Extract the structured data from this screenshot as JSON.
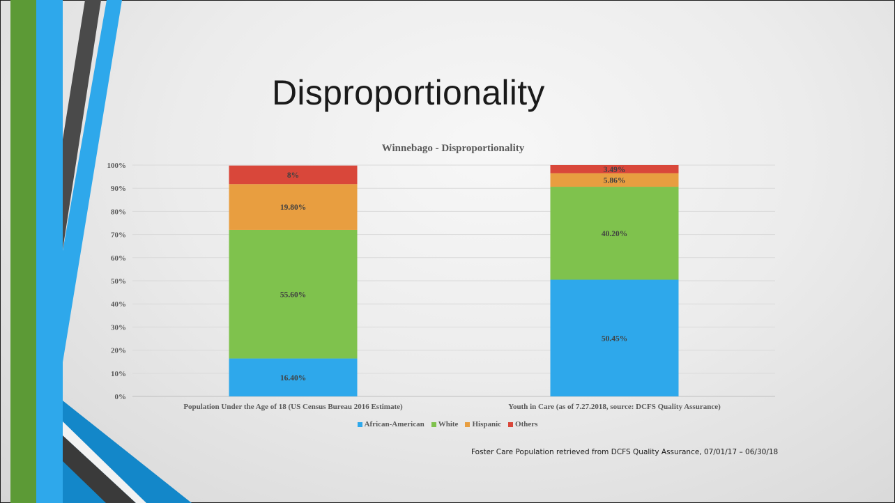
{
  "slide": {
    "title": "Disproportionality",
    "footnote": "Foster Care Population retrieved from DCFS Quality Assurance, 07/01/17 – 06/30/18"
  },
  "chart_data": {
    "type": "bar",
    "stacked": true,
    "title": "Winnebago - Disproportionality",
    "categories": [
      "Population Under the Age of 18 (US Census Bureau 2016 Estimate)",
      "Youth in Care (as of 7.27.2018, source: DCFS Quality Assurance)"
    ],
    "series": [
      {
        "name": "African-American",
        "color": "#2EA8EB",
        "values": [
          16.4,
          50.45
        ],
        "labels": [
          "16.40%",
          "50.45%"
        ]
      },
      {
        "name": "White",
        "color": "#7FC24D",
        "values": [
          55.6,
          40.2
        ],
        "labels": [
          "55.60%",
          "40.20%"
        ]
      },
      {
        "name": "Hispanic",
        "color": "#E89E40",
        "values": [
          19.8,
          5.86
        ],
        "labels": [
          "19.80%",
          "5.86%"
        ]
      },
      {
        "name": "Others",
        "color": "#D9473A",
        "values": [
          8,
          3.49
        ],
        "labels": [
          "8%",
          "3.49%"
        ]
      }
    ],
    "ylim": [
      0,
      100
    ],
    "yticks": [
      "0%",
      "10%",
      "20%",
      "30%",
      "40%",
      "50%",
      "60%",
      "70%",
      "80%",
      "90%",
      "100%"
    ],
    "grid": true,
    "legend_position": "bottom"
  }
}
